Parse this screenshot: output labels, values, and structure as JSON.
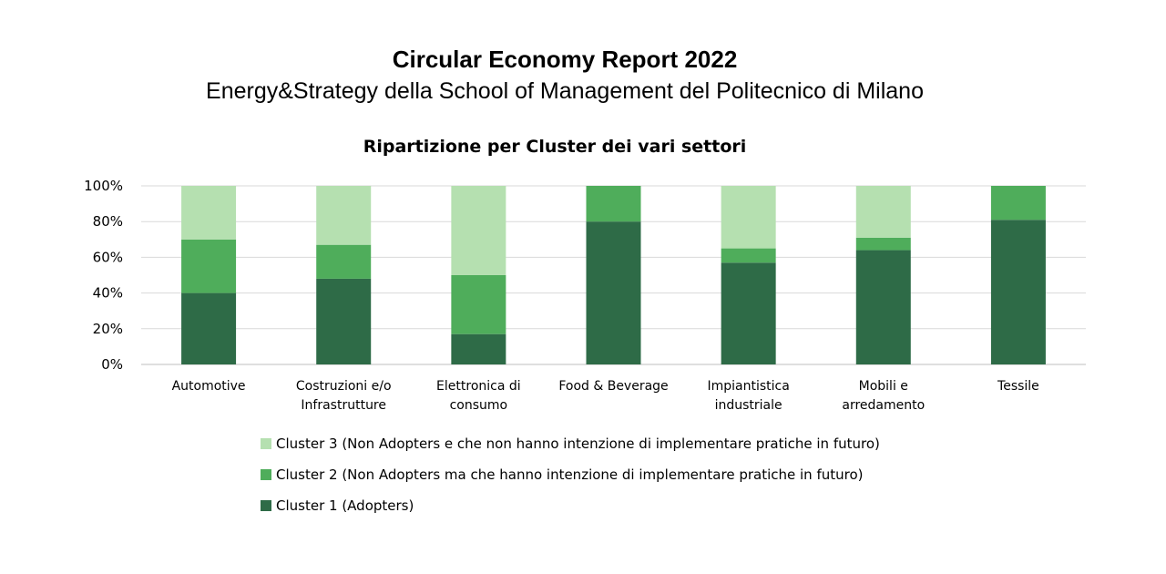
{
  "header": {
    "title": "Circular Economy Report 2022",
    "subtitle": "Energy&Strategy della School of Management del Politecnico di Milano"
  },
  "chart_data": {
    "type": "bar",
    "stacked": true,
    "title": "Ripartizione per Cluster dei vari settori",
    "categories": [
      [
        "Automotive"
      ],
      [
        "Costruzioni e/o",
        "Infrastrutture"
      ],
      [
        "Elettronica di",
        "consumo"
      ],
      [
        "Food & Beverage"
      ],
      [
        "Impiantistica",
        "industriale"
      ],
      [
        "Mobili e",
        "arredamento"
      ],
      [
        "Tessile"
      ]
    ],
    "series": [
      {
        "name": "Cluster 1 (Adopters)",
        "color": "#2e6b47",
        "values": [
          40,
          48,
          17,
          80,
          57,
          64,
          81
        ]
      },
      {
        "name": "Cluster 2 (Non Adopters ma che hanno intenzione di implementare pratiche in futuro)",
        "color": "#4fad5b",
        "values": [
          30,
          19,
          33,
          20,
          8,
          7,
          19
        ]
      },
      {
        "name": "Cluster 3 (Non Adopters e che non hanno intenzione di implementare pratiche in futuro)",
        "color": "#b5e0b0",
        "values": [
          30,
          33,
          50,
          0,
          35,
          29,
          0
        ]
      }
    ],
    "yticks": [
      "0%",
      "20%",
      "40%",
      "60%",
      "80%",
      "100%"
    ],
    "ylim": [
      0,
      100
    ],
    "grid": true,
    "legend_position": "bottom"
  }
}
